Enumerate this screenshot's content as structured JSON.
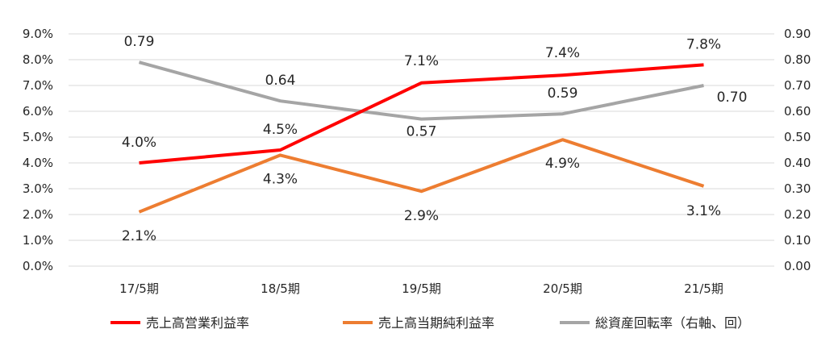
{
  "chart_data": {
    "type": "line",
    "categories": [
      "17/5期",
      "18/5期",
      "19/5期",
      "20/5期",
      "21/5期"
    ],
    "left_axis": {
      "ylim": [
        0,
        9
      ],
      "ticks": [
        "0.0%",
        "1.0%",
        "2.0%",
        "3.0%",
        "4.0%",
        "5.0%",
        "6.0%",
        "7.0%",
        "8.0%",
        "9.0%"
      ]
    },
    "right_axis": {
      "ylim": [
        0,
        0.9
      ],
      "ticks": [
        "0.00",
        "0.10",
        "0.20",
        "0.30",
        "0.40",
        "0.50",
        "0.60",
        "0.70",
        "0.80",
        "0.90"
      ]
    },
    "grid": true,
    "legend_position": "bottom",
    "series": [
      {
        "name": "売上高営業利益率",
        "axis": "left",
        "color": "#ff0000",
        "values": [
          4.0,
          4.5,
          7.1,
          7.4,
          7.8
        ],
        "labels": [
          "4.0%",
          "4.5%",
          "7.1%",
          "7.4%",
          "7.8%"
        ]
      },
      {
        "name": "売上高当期純利益率",
        "axis": "left",
        "color": "#ed7d31",
        "values": [
          2.1,
          4.3,
          2.9,
          4.9,
          3.1
        ],
        "labels": [
          "2.1%",
          "4.3%",
          "2.9%",
          "4.9%",
          "3.1%"
        ]
      },
      {
        "name": "総資産回転率（右軸、回）",
        "axis": "right",
        "color": "#a5a5a5",
        "values": [
          0.79,
          0.64,
          0.57,
          0.59,
          0.7
        ],
        "labels": [
          "0.79",
          "0.64",
          "0.57",
          "0.59",
          "0.70"
        ]
      }
    ]
  }
}
